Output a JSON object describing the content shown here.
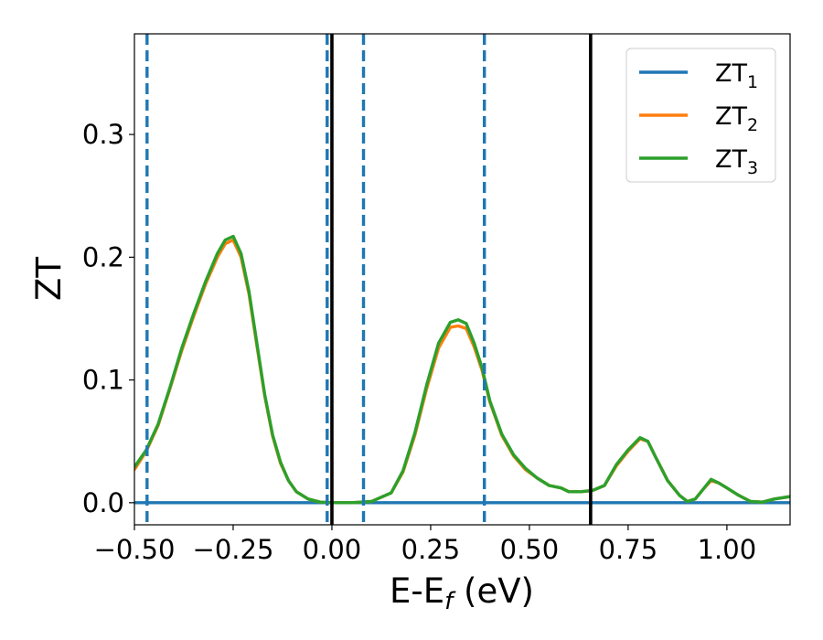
{
  "chart_data": {
    "type": "line",
    "xlabel_main": "E-E",
    "xlabel_sub": "f",
    "xlabel_unit": " (eV)",
    "ylabel": "ZT",
    "xlim": [
      -0.5,
      1.16
    ],
    "ylim": [
      -0.018,
      0.382
    ],
    "xticks": [
      -0.5,
      -0.25,
      0.0,
      0.25,
      0.5,
      0.75,
      1.0
    ],
    "xtick_labels": [
      "−0.50",
      "−0.25",
      "0.00",
      "0.25",
      "0.50",
      "0.75",
      "1.00"
    ],
    "yticks": [
      0.0,
      0.1,
      0.2,
      0.3
    ],
    "ytick_labels": [
      "0.0",
      "0.1",
      "0.2",
      "0.3"
    ],
    "grid": false,
    "legend_position": "top-right",
    "series": [
      {
        "name_main": "ZT",
        "name_sub": "1",
        "color": "#1f77b4",
        "x": [
          -0.5,
          1.16
        ],
        "y": [
          0.0,
          0.0
        ]
      },
      {
        "name_main": "ZT",
        "name_sub": "2",
        "color": "#ff7f0e",
        "x": [
          -0.5,
          -0.47,
          -0.44,
          -0.41,
          -0.38,
          -0.35,
          -0.32,
          -0.29,
          -0.27,
          -0.25,
          -0.23,
          -0.21,
          -0.19,
          -0.17,
          -0.15,
          -0.13,
          -0.11,
          -0.09,
          -0.06,
          -0.03,
          0.0,
          0.05,
          0.1,
          0.15,
          0.18,
          0.21,
          0.24,
          0.27,
          0.3,
          0.32,
          0.34,
          0.36,
          0.38,
          0.4,
          0.43,
          0.46,
          0.49,
          0.52,
          0.55,
          0.58,
          0.6,
          0.63,
          0.66,
          0.69,
          0.72,
          0.75,
          0.78,
          0.8,
          0.82,
          0.85,
          0.88,
          0.9,
          0.92,
          0.94,
          0.96,
          0.98,
          1.0,
          1.03,
          1.06,
          1.09,
          1.12,
          1.16
        ],
        "y": [
          0.027,
          0.042,
          0.063,
          0.093,
          0.124,
          0.152,
          0.178,
          0.2,
          0.211,
          0.214,
          0.2,
          0.17,
          0.128,
          0.087,
          0.054,
          0.032,
          0.018,
          0.009,
          0.003,
          0.0005,
          0.0,
          0.0,
          0.001,
          0.008,
          0.025,
          0.055,
          0.093,
          0.126,
          0.143,
          0.144,
          0.142,
          0.127,
          0.108,
          0.082,
          0.055,
          0.038,
          0.027,
          0.02,
          0.014,
          0.012,
          0.009,
          0.009,
          0.01,
          0.014,
          0.03,
          0.042,
          0.052,
          0.05,
          0.037,
          0.018,
          0.006,
          0.001,
          0.003,
          0.011,
          0.018,
          0.016,
          0.012,
          0.006,
          0.001,
          0.0005,
          0.003,
          0.005
        ]
      },
      {
        "name_main": "ZT",
        "name_sub": "3",
        "color": "#2ca02c",
        "x": [
          -0.5,
          -0.47,
          -0.44,
          -0.41,
          -0.38,
          -0.35,
          -0.32,
          -0.29,
          -0.27,
          -0.25,
          -0.23,
          -0.21,
          -0.19,
          -0.17,
          -0.15,
          -0.13,
          -0.11,
          -0.09,
          -0.06,
          -0.03,
          0.0,
          0.05,
          0.1,
          0.15,
          0.18,
          0.21,
          0.24,
          0.27,
          0.3,
          0.32,
          0.34,
          0.36,
          0.38,
          0.4,
          0.43,
          0.46,
          0.49,
          0.52,
          0.55,
          0.58,
          0.6,
          0.63,
          0.66,
          0.69,
          0.72,
          0.75,
          0.78,
          0.8,
          0.82,
          0.85,
          0.88,
          0.9,
          0.92,
          0.94,
          0.96,
          0.98,
          1.0,
          1.03,
          1.06,
          1.09,
          1.12,
          1.16
        ],
        "y": [
          0.029,
          0.043,
          0.064,
          0.094,
          0.126,
          0.154,
          0.18,
          0.203,
          0.214,
          0.217,
          0.203,
          0.172,
          0.13,
          0.088,
          0.055,
          0.033,
          0.018,
          0.009,
          0.003,
          0.0005,
          0.0,
          0.0,
          0.001,
          0.008,
          0.026,
          0.057,
          0.096,
          0.13,
          0.147,
          0.149,
          0.146,
          0.13,
          0.11,
          0.083,
          0.056,
          0.039,
          0.028,
          0.02,
          0.014,
          0.012,
          0.009,
          0.009,
          0.01,
          0.014,
          0.031,
          0.043,
          0.053,
          0.05,
          0.037,
          0.018,
          0.006,
          0.001,
          0.003,
          0.011,
          0.019,
          0.016,
          0.012,
          0.006,
          0.001,
          0.0005,
          0.003,
          0.005
        ]
      }
    ],
    "vlines": [
      {
        "x": -0.468,
        "style": "dashed",
        "color": "#1f77b4"
      },
      {
        "x": -0.012,
        "style": "dashed",
        "color": "#1f77b4"
      },
      {
        "x": 0.08,
        "style": "dashed",
        "color": "#1f77b4"
      },
      {
        "x": 0.386,
        "style": "dashed",
        "color": "#1f77b4"
      },
      {
        "x": 0.0,
        "style": "solid",
        "color": "#000000"
      },
      {
        "x": 0.655,
        "style": "solid",
        "color": "#000000"
      }
    ]
  }
}
